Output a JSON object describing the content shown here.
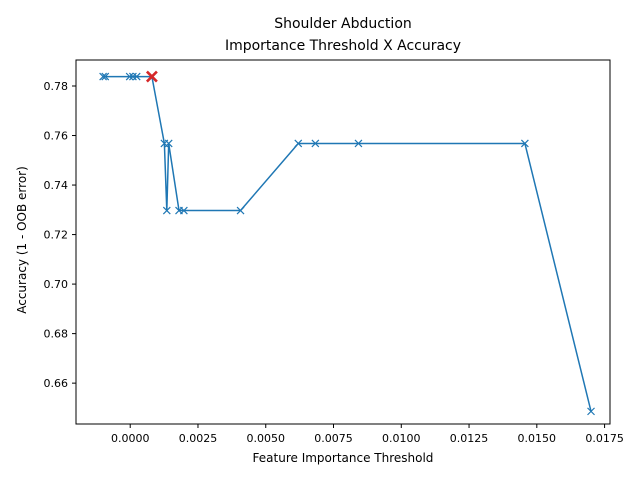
{
  "chart_data": {
    "type": "line",
    "title_line1": "Shoulder Abduction",
    "title_line2": "Importance Threshold X Accuracy",
    "xlabel": "Feature Importance Threshold",
    "ylabel": "Accuracy (1 - OOB error)",
    "xlim": [
      -0.002,
      0.0177
    ],
    "ylim": [
      0.6435,
      0.7905
    ],
    "x_ticks": [
      0.0,
      0.0025,
      0.005,
      0.0075,
      0.01,
      0.0125,
      0.015,
      0.0175
    ],
    "x_tick_labels": [
      "0.0000",
      "0.0025",
      "0.0050",
      "0.0075",
      "0.0100",
      "0.0125",
      "0.0150",
      "0.0175"
    ],
    "y_ticks": [
      0.66,
      0.68,
      0.7,
      0.72,
      0.74,
      0.76,
      0.78
    ],
    "y_tick_labels": [
      "0.66",
      "0.68",
      "0.70",
      "0.72",
      "0.74",
      "0.76",
      "0.78"
    ],
    "grid": false,
    "series": [
      {
        "color": "#1f77b4",
        "marker": "x",
        "points": [
          {
            "x": -0.001,
            "y": 0.7838
          },
          {
            "x": -0.00092,
            "y": 0.7838
          },
          {
            "x": -2e-05,
            "y": 0.7838
          },
          {
            "x": 0.0001,
            "y": 0.7838
          },
          {
            "x": 0.00024,
            "y": 0.7838
          },
          {
            "x": 0.00078,
            "y": 0.7838
          },
          {
            "x": 0.0008,
            "y": 0.7838
          },
          {
            "x": 0.00126,
            "y": 0.7568
          },
          {
            "x": 0.00135,
            "y": 0.7297
          },
          {
            "x": 0.00142,
            "y": 0.7568
          },
          {
            "x": 0.0018,
            "y": 0.7297
          },
          {
            "x": 0.00198,
            "y": 0.7297
          },
          {
            "x": 0.00407,
            "y": 0.7297
          },
          {
            "x": 0.0062,
            "y": 0.7568
          },
          {
            "x": 0.00683,
            "y": 0.7568
          },
          {
            "x": 0.00842,
            "y": 0.7568
          },
          {
            "x": 0.01456,
            "y": 0.7568
          },
          {
            "x": 0.017,
            "y": 0.6486
          }
        ]
      }
    ],
    "highlight": {
      "x": 0.0008,
      "y": 0.7838,
      "color": "#d62728",
      "marker": "x"
    }
  }
}
